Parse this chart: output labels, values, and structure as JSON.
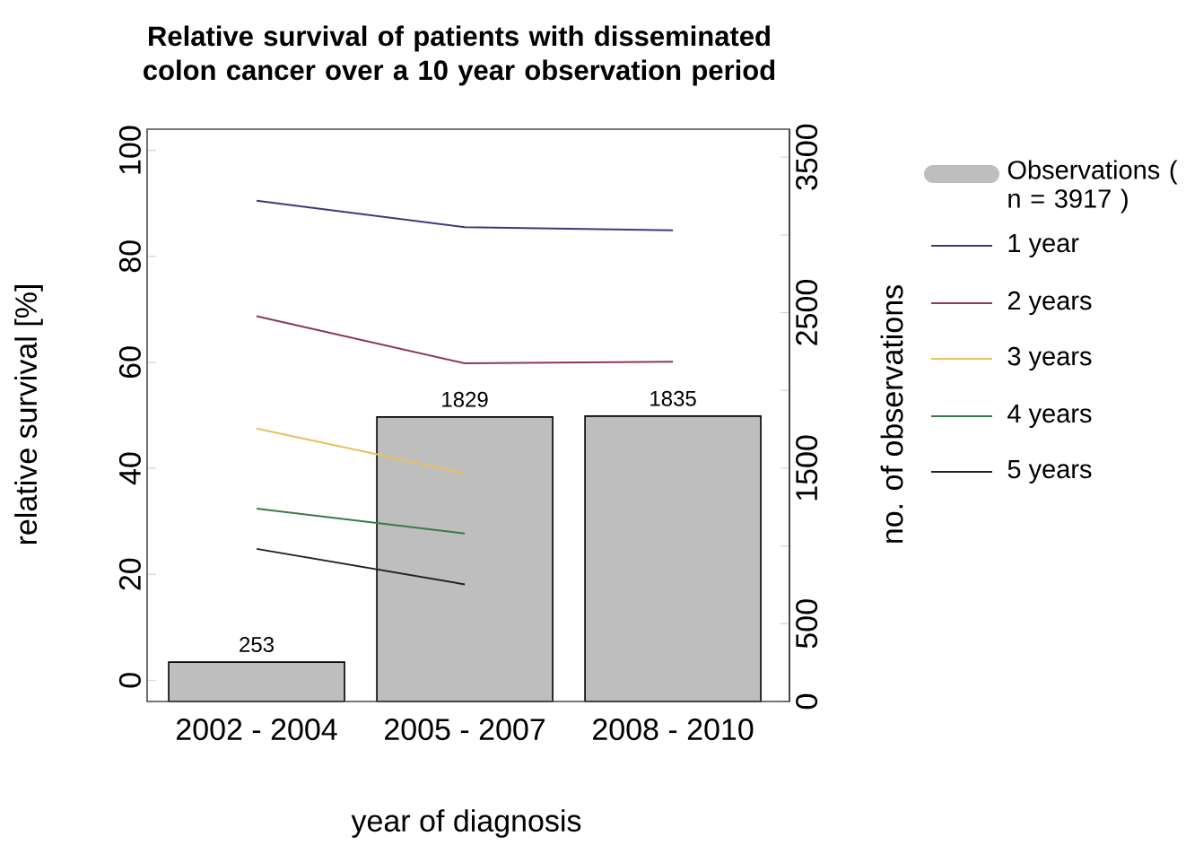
{
  "chart_data": {
    "type": "line",
    "title": "Relative survival of patients with disseminated colon cancer over a 10 year observation period",
    "xlabel": "year of diagnosis",
    "ylabel": "relative survival [%]",
    "y2label": "no. of observations",
    "categories": [
      "2002 - 2004",
      "2005 - 2007",
      "2008 - 2010"
    ],
    "ylim": [
      -4,
      104
    ],
    "yticks": [
      0,
      20,
      40,
      60,
      80,
      100
    ],
    "y2lim": [
      0,
      3680
    ],
    "y2ticks": [
      0,
      500,
      {
        "value": 1000,
        "label": null
      },
      1500,
      {
        "value": 2000,
        "label": null
      },
      2500,
      {
        "value": 3000,
        "label": null
      },
      3500
    ],
    "legend": "right",
    "series": [
      {
        "name": "Observations ( n = 3917 )",
        "type": "bar",
        "axis": "y2",
        "color": "#bebebe",
        "values": [
          253,
          1829,
          1835
        ],
        "value_labels": [
          "253",
          "1829",
          "1835"
        ]
      },
      {
        "name": "1 year",
        "color": "#3b3b7a",
        "values": [
          90.5,
          85.5,
          84.9
        ]
      },
      {
        "name": "2 years",
        "color": "#8b3a4a",
        "values": [
          68.7,
          59.8,
          60.1
        ]
      },
      {
        "name": "3 years",
        "color": "#e8c060",
        "values": [
          47.5,
          39.1,
          null
        ]
      },
      {
        "name": "4 years",
        "color": "#3a7a4a",
        "values": [
          32.4,
          27.7,
          null
        ]
      },
      {
        "name": "5 years",
        "color": "#222222",
        "values": [
          24.8,
          18.1,
          null
        ]
      }
    ]
  }
}
